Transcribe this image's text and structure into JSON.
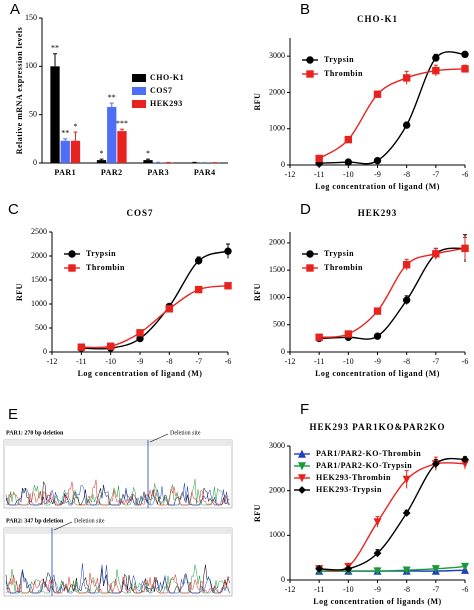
{
  "chart_data": [
    {
      "type": "bar",
      "panel_label": "A",
      "y_label": "Relative mRNA expression levels",
      "categories": [
        "PAR1",
        "PAR2",
        "PAR3",
        "PAR4"
      ],
      "ylim": [
        0,
        150
      ],
      "yticks": [
        0,
        50,
        100,
        150
      ],
      "legend": "upper right",
      "series": [
        {
          "name": "CHO-K1",
          "color": "#000000",
          "values": [
            100,
            3,
            3,
            0.5
          ],
          "errors": [
            13,
            1,
            1,
            0.2
          ],
          "significance": [
            "**",
            "*",
            "*",
            null
          ]
        },
        {
          "name": "COS7",
          "color": "#4f6ef7",
          "values": [
            23,
            58,
            0.5,
            0.3
          ],
          "errors": [
            2,
            4,
            0.2,
            0.1
          ],
          "significance": [
            "**",
            "**",
            null,
            null
          ]
        },
        {
          "name": "HEK293",
          "color": "#e8231f",
          "values": [
            23,
            33,
            0.4,
            0.3
          ],
          "errors": [
            9,
            2,
            0.2,
            0.1
          ],
          "significance": [
            "*",
            "***",
            null,
            null
          ]
        }
      ]
    },
    {
      "type": "line",
      "panel_label": "B",
      "title": "CHO-K1",
      "x_label": "Log concentration of ligand (M)",
      "y_label": "RFU",
      "x": [
        -11,
        -10,
        -9,
        -8,
        -7,
        -6
      ],
      "xlim": [
        -12,
        -6
      ],
      "xticks": [
        -12,
        -11,
        -10,
        -9,
        -8,
        -7,
        -6
      ],
      "ylim": [
        0,
        3500
      ],
      "yticks": [
        0,
        1000,
        2000,
        3000
      ],
      "legend": "upper left",
      "series": [
        {
          "name": "Trypsin",
          "color": "#000000",
          "marker": "circle",
          "values": [
            50,
            80,
            120,
            1100,
            2950,
            3050
          ],
          "errors": [
            20,
            20,
            30,
            60,
            100,
            60
          ]
        },
        {
          "name": "Thrombin",
          "color": "#e8231f",
          "marker": "square",
          "values": [
            180,
            700,
            1950,
            2400,
            2600,
            2650
          ],
          "errors": [
            60,
            80,
            80,
            180,
            150,
            100
          ]
        }
      ]
    },
    {
      "type": "line",
      "panel_label": "C",
      "title": "COS7",
      "x_label": "Log concentration of ligand (M)",
      "y_label": "RFU",
      "x": [
        -11,
        -10,
        -9,
        -8,
        -7,
        -6
      ],
      "xlim": [
        -12,
        -6
      ],
      "xticks": [
        -12,
        -11,
        -10,
        -9,
        -8,
        -7,
        -6
      ],
      "ylim": [
        0,
        2500
      ],
      "yticks": [
        0,
        500,
        1000,
        1500,
        2000,
        2500
      ],
      "legend": "upper left",
      "series": [
        {
          "name": "Trypsin",
          "color": "#000000",
          "marker": "circle",
          "values": [
            80,
            80,
            280,
            950,
            1900,
            2100
          ],
          "errors": [
            20,
            20,
            30,
            50,
            80,
            150
          ]
        },
        {
          "name": "Thrombin",
          "color": "#e8231f",
          "marker": "square",
          "values": [
            100,
            120,
            400,
            900,
            1300,
            1380
          ],
          "errors": [
            20,
            20,
            40,
            50,
            60,
            50
          ]
        }
      ]
    },
    {
      "type": "line",
      "panel_label": "D",
      "title": "HEK293",
      "x_label": "Log concentration of ligand (M)",
      "y_label": "RFU",
      "x": [
        -11,
        -10,
        -9,
        -8,
        -7,
        -6
      ],
      "xlim": [
        -12,
        -6
      ],
      "xticks": [
        -12,
        -11,
        -10,
        -9,
        -8,
        -7,
        -6
      ],
      "ylim": [
        0,
        2200
      ],
      "yticks": [
        0,
        500,
        1000,
        1500,
        2000
      ],
      "legend": "upper left",
      "series": [
        {
          "name": "Trypsin",
          "color": "#000000",
          "marker": "circle",
          "values": [
            250,
            270,
            290,
            950,
            1800,
            1900
          ],
          "errors": [
            20,
            20,
            30,
            80,
            100,
            250
          ]
        },
        {
          "name": "Thrombin",
          "color": "#e8231f",
          "marker": "square",
          "values": [
            270,
            330,
            750,
            1600,
            1800,
            1900
          ],
          "errors": [
            20,
            30,
            50,
            100,
            100,
            200
          ]
        }
      ]
    },
    {
      "type": "line",
      "panel_label": "F",
      "title": "HEK293 PAR1KO&PAR2KO",
      "x_label": "Log concentration of ligands (M)",
      "y_label": "RFU",
      "x": [
        -11,
        -10,
        -9,
        -8,
        -7,
        -6
      ],
      "xlim": [
        -12,
        -6
      ],
      "xticks": [
        -12,
        -11,
        -10,
        -9,
        -8,
        -7,
        -6
      ],
      "ylim": [
        0,
        3000
      ],
      "yticks": [
        0,
        1000,
        2000,
        3000
      ],
      "legend": "upper left",
      "series": [
        {
          "name": "PAR1/PAR2-KO-Thrombin",
          "color": "#1f3fbf",
          "marker": "triangle",
          "values": [
            200,
            200,
            200,
            200,
            200,
            220
          ],
          "errors": [
            20,
            20,
            20,
            20,
            20,
            20
          ]
        },
        {
          "name": "PAR1/PAR2-KO-Trypsin",
          "color": "#1a9a3a",
          "marker": "triangle-down",
          "values": [
            200,
            200,
            200,
            220,
            250,
            300
          ],
          "errors": [
            20,
            20,
            20,
            20,
            30,
            40
          ]
        },
        {
          "name": "HEK293-Thrombin",
          "color": "#e8231f",
          "marker": "triangle-down",
          "values": [
            250,
            300,
            1300,
            2250,
            2600,
            2600
          ],
          "errors": [
            30,
            40,
            120,
            200,
            150,
            120
          ]
        },
        {
          "name": "HEK293-Trypsin",
          "color": "#000000",
          "marker": "diamond",
          "values": [
            250,
            250,
            600,
            1500,
            2600,
            2700
          ],
          "errors": [
            20,
            30,
            80,
            60,
            100,
            60
          ]
        }
      ]
    }
  ],
  "panel_e": {
    "panel_label": "E",
    "traces": [
      {
        "label": "PAR1: 270 bp deletion",
        "marker_label": "Deletion site"
      },
      {
        "label": "PAR2: 347 bp deletion",
        "marker_label": "Deletion site"
      }
    ]
  }
}
